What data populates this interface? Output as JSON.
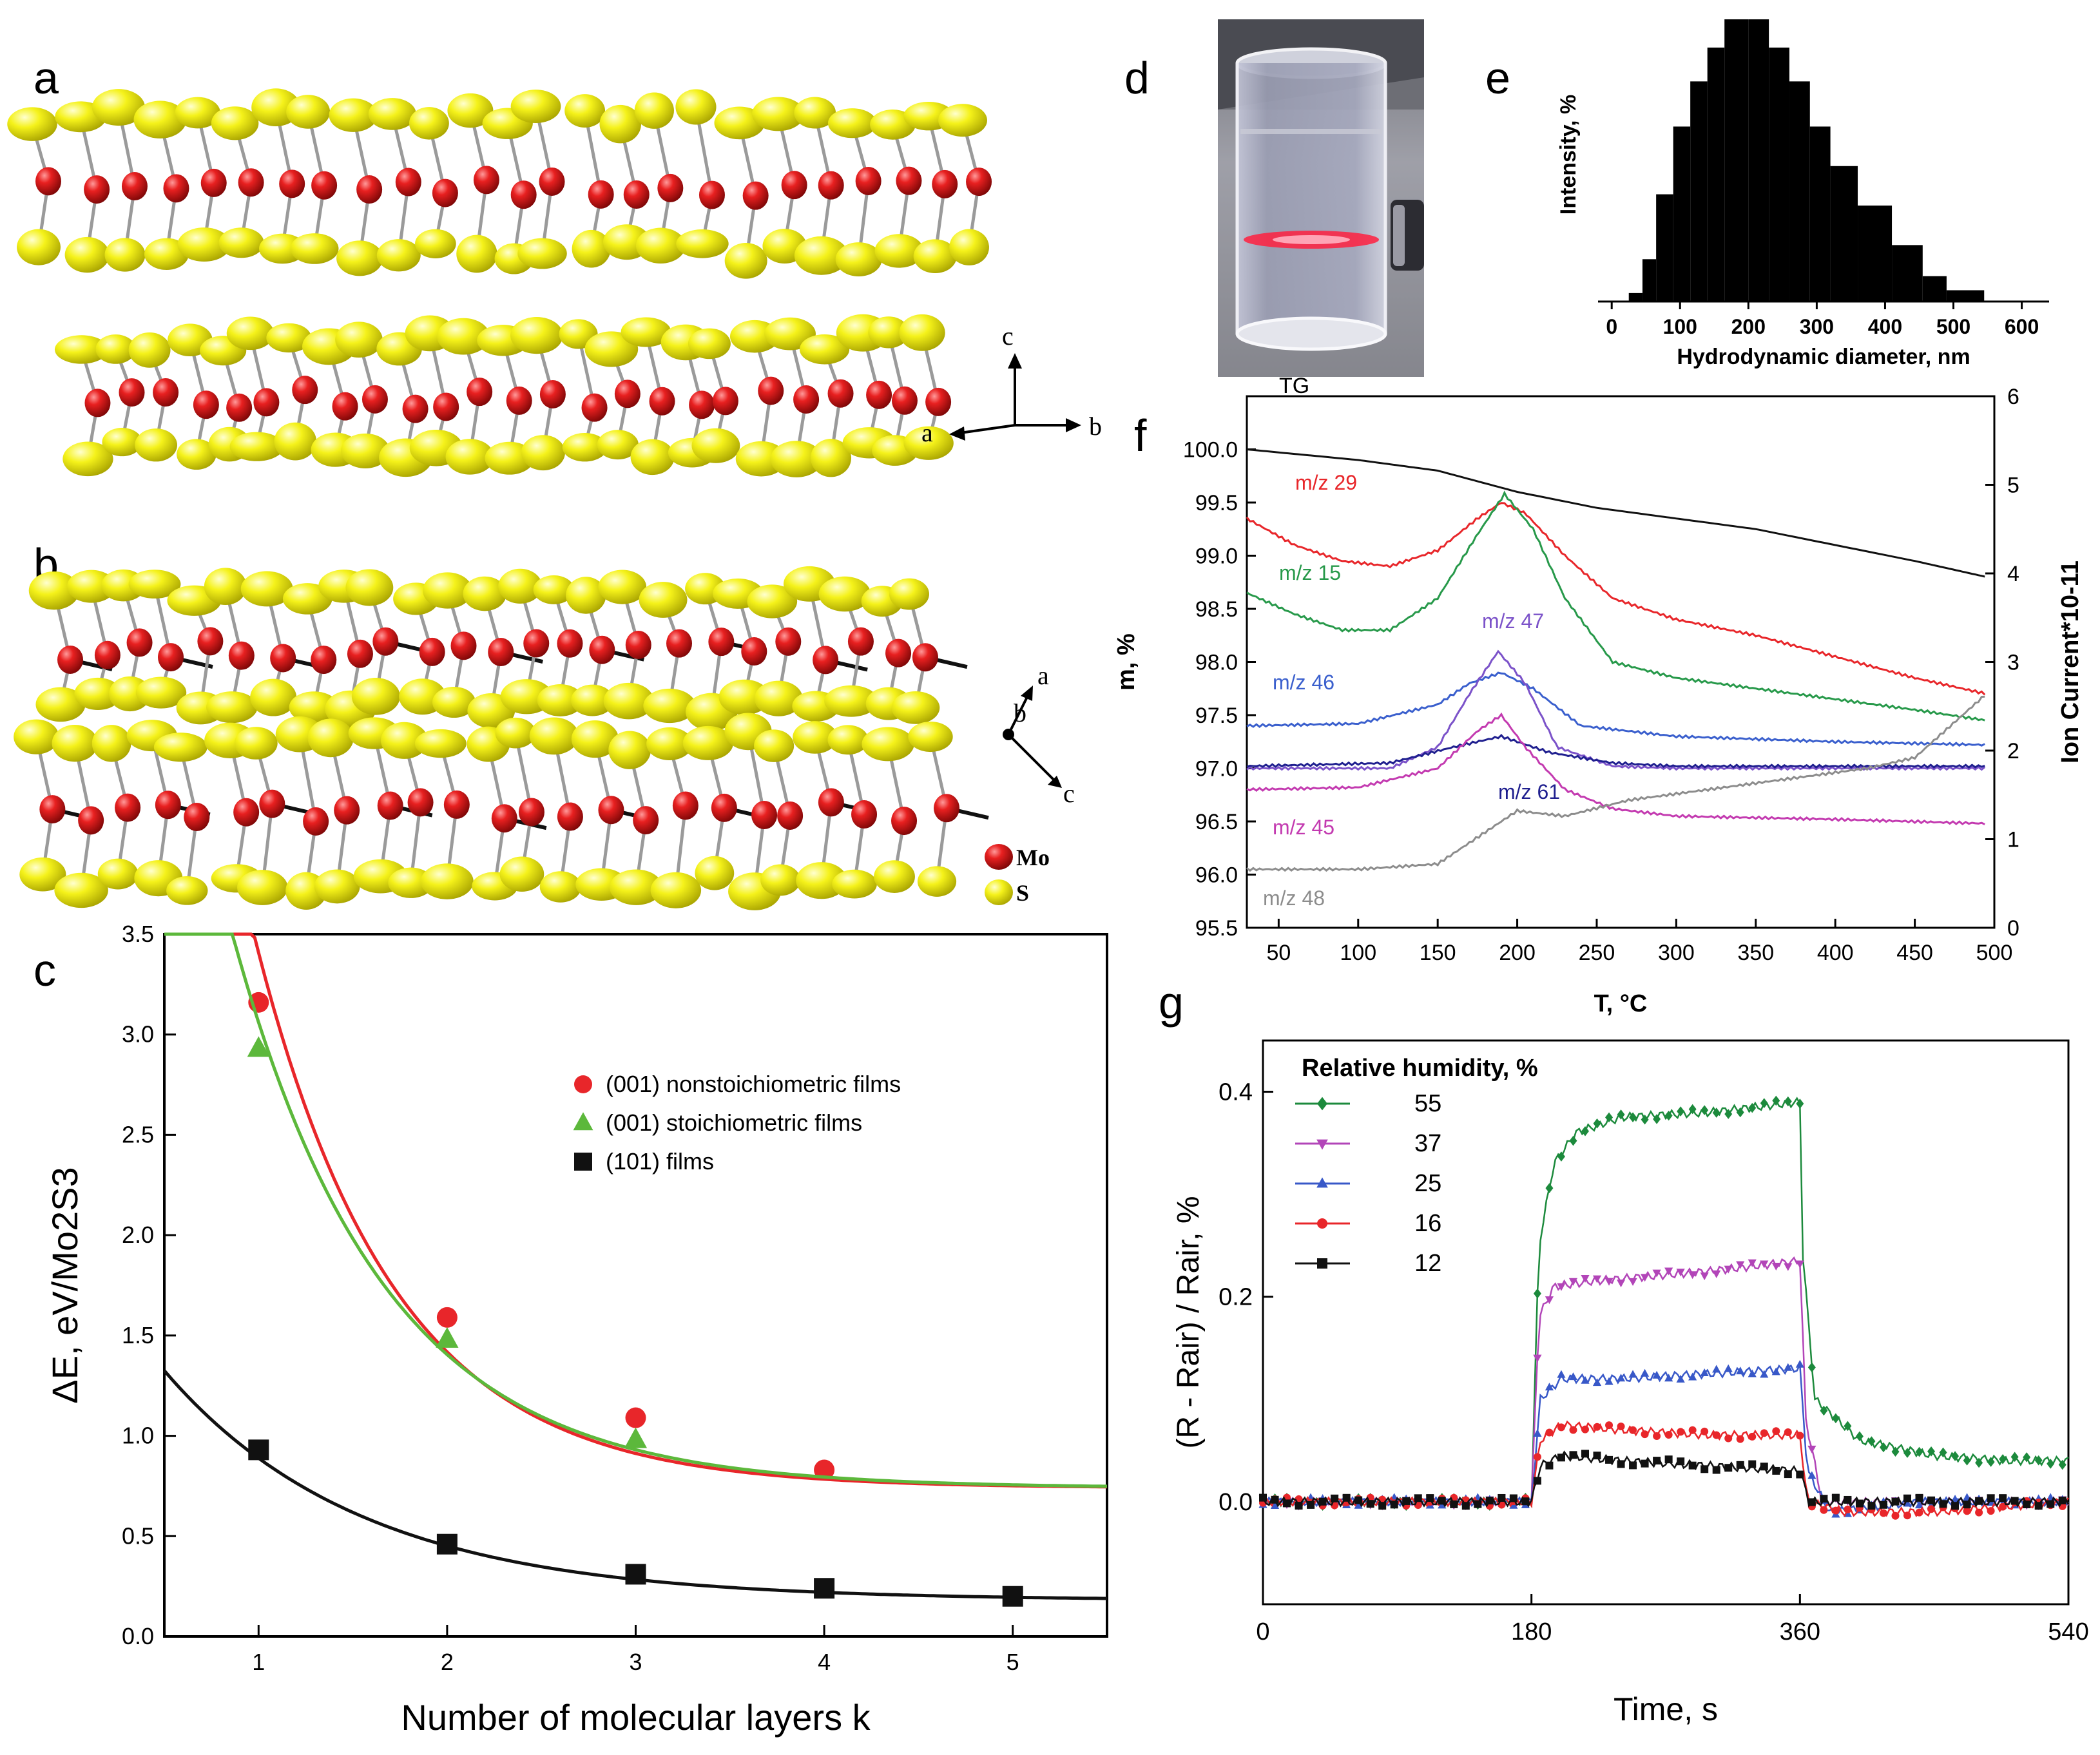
{
  "panel_labels": {
    "a": "a",
    "b": "b",
    "c": "c",
    "d": "d",
    "e": "e",
    "f": "f",
    "g": "g"
  },
  "structure": {
    "axes_a": {
      "c": "c",
      "a": "a",
      "b": "b"
    },
    "axes_b": {
      "a": "a",
      "b": "b",
      "c": "c"
    },
    "legend": {
      "mo": "Mo",
      "s": "S"
    },
    "colors": {
      "mo": "#e01818",
      "s": "#f0ee10",
      "bond": "#9a9a9a",
      "bond_dark": "#111111"
    }
  },
  "photo": {
    "colors": {
      "glass": "#9da0b3",
      "laser": "#ff2040",
      "background": "#6d6d73"
    }
  },
  "chart_data": [
    {
      "id": "c",
      "type": "scatter",
      "xlabel": "Number of molecular layers k",
      "ylabel": "ΔE, eV/Mo2S3",
      "xlim": [
        0.5,
        5.5
      ],
      "ylim": [
        0,
        3.5
      ],
      "xticks": [
        "1",
        "2",
        "3",
        "4",
        "5"
      ],
      "yticks": [
        "0.0",
        "0.5",
        "1.0",
        "1.5",
        "2.0",
        "2.5",
        "3.0",
        "3.5"
      ],
      "series": [
        {
          "name": "(001) nonstoichiometric films",
          "color": "#e8262a",
          "marker": "circle",
          "x": [
            1,
            2,
            3,
            4
          ],
          "y": [
            3.16,
            1.59,
            1.09,
            0.83
          ],
          "fit": {
            "a": 0.74,
            "b": 10.5,
            "c": 1.37
          }
        },
        {
          "name": "(001) stoichiometric films",
          "color": "#5cb83b",
          "marker": "triangle",
          "x": [
            1,
            2,
            3
          ],
          "y": [
            2.93,
            1.48,
            0.98
          ],
          "fit": {
            "a": 0.74,
            "b": 8.1,
            "c": 1.25
          }
        },
        {
          "name": "(101) films",
          "color": "#111111",
          "marker": "square",
          "x": [
            1,
            2,
            3,
            4,
            5
          ],
          "y": [
            0.93,
            0.46,
            0.31,
            0.24,
            0.2
          ],
          "fit": {
            "a": 0.18,
            "b": 1.85,
            "c": 0.96
          }
        }
      ]
    },
    {
      "id": "e",
      "type": "bar",
      "xlabel": "Hydrodynamic diameter, nm",
      "ylabel": "Intensity, %",
      "xlim": [
        -20,
        640
      ],
      "ylim": [
        0,
        1
      ],
      "xticks": [
        "0",
        "100",
        "200",
        "300",
        "400",
        "500",
        "600"
      ],
      "bar_color": "#000000",
      "bins": [
        [
          25,
          45,
          0.03
        ],
        [
          45,
          65,
          0.15
        ],
        [
          65,
          90,
          0.38
        ],
        [
          90,
          115,
          0.62
        ],
        [
          115,
          140,
          0.78
        ],
        [
          140,
          165,
          0.9
        ],
        [
          165,
          200,
          1.0
        ],
        [
          200,
          230,
          1.0
        ],
        [
          230,
          260,
          0.9
        ],
        [
          260,
          290,
          0.78
        ],
        [
          290,
          320,
          0.62
        ],
        [
          320,
          360,
          0.48
        ],
        [
          360,
          410,
          0.34
        ],
        [
          410,
          455,
          0.2
        ],
        [
          455,
          490,
          0.09
        ],
        [
          490,
          545,
          0.04
        ]
      ]
    },
    {
      "id": "f",
      "type": "line",
      "title": "TG",
      "xlabel": "T, °C",
      "ylabel": "m, %",
      "y2label": "Ion Current*10-11",
      "xlim": [
        30,
        500
      ],
      "ylim": [
        95.5,
        100.5
      ],
      "y2lim": [
        0,
        6
      ],
      "xticks": [
        "50",
        "100",
        "150",
        "200",
        "250",
        "300",
        "350",
        "400",
        "450",
        "500"
      ],
      "yticks": [
        "95.5",
        "96.0",
        "96.5",
        "97.0",
        "97.5",
        "98.0",
        "98.5",
        "99.0",
        "99.5",
        "100.0"
      ],
      "y2ticks": [
        "0",
        "1",
        "2",
        "3",
        "4",
        "5",
        "6"
      ],
      "series": [
        {
          "name": "TG",
          "color": "#111111",
          "axis": "left",
          "x": [
            30,
            100,
            150,
            200,
            250,
            300,
            350,
            400,
            450,
            495
          ],
          "y": [
            100.0,
            99.9,
            99.8,
            99.6,
            99.45,
            99.35,
            99.25,
            99.1,
            98.95,
            98.8
          ]
        },
        {
          "name": "m/z 29",
          "color": "#e8262a",
          "axis": "left",
          "x": [
            30,
            60,
            90,
            120,
            150,
            175,
            190,
            205,
            230,
            260,
            300,
            350,
            400,
            450,
            495
          ],
          "y": [
            99.35,
            99.1,
            98.95,
            98.9,
            99.05,
            99.35,
            99.5,
            99.4,
            99.0,
            98.6,
            98.4,
            98.25,
            98.05,
            97.85,
            97.7
          ]
        },
        {
          "name": "m/z 15",
          "color": "#27994a",
          "axis": "left",
          "x": [
            30,
            60,
            90,
            120,
            150,
            175,
            192,
            210,
            230,
            260,
            300,
            350,
            400,
            450,
            495
          ],
          "y": [
            98.65,
            98.45,
            98.3,
            98.3,
            98.6,
            99.2,
            99.58,
            99.25,
            98.6,
            98.0,
            97.85,
            97.75,
            97.65,
            97.55,
            97.45
          ]
        },
        {
          "name": "m/z 46",
          "color": "#3a5fcd",
          "axis": "left",
          "x": [
            30,
            100,
            150,
            170,
            190,
            210,
            240,
            300,
            400,
            495
          ],
          "y": [
            97.4,
            97.42,
            97.6,
            97.8,
            97.9,
            97.75,
            97.4,
            97.3,
            97.25,
            97.22
          ]
        },
        {
          "name": "m/z 47",
          "color": "#7b52c9",
          "axis": "left",
          "x": [
            30,
            120,
            150,
            170,
            188,
            205,
            225,
            260,
            300,
            400,
            495
          ],
          "y": [
            97.0,
            97.0,
            97.2,
            97.7,
            98.1,
            97.8,
            97.2,
            97.02,
            97.0,
            97.0,
            97.0
          ]
        },
        {
          "name": "m/z 61",
          "color": "#1f1f8f",
          "axis": "left",
          "x": [
            30,
            120,
            160,
            190,
            220,
            260,
            300,
            400,
            495
          ],
          "y": [
            97.02,
            97.05,
            97.2,
            97.3,
            97.15,
            97.05,
            97.02,
            97.02,
            97.02
          ]
        },
        {
          "name": "m/z 45",
          "color": "#c33ab0",
          "axis": "left",
          "x": [
            30,
            100,
            150,
            175,
            190,
            205,
            230,
            260,
            300,
            400,
            495
          ],
          "y": [
            96.8,
            96.82,
            97.0,
            97.35,
            97.5,
            97.2,
            96.8,
            96.62,
            96.55,
            96.52,
            96.48
          ]
        },
        {
          "name": "m/z 48",
          "color": "#8c8c8c",
          "axis": "left",
          "x": [
            30,
            100,
            150,
            180,
            200,
            230,
            270,
            320,
            370,
            420,
            450,
            480,
            495
          ],
          "y": [
            96.05,
            96.05,
            96.1,
            96.4,
            96.6,
            96.55,
            96.7,
            96.8,
            96.9,
            97.0,
            97.1,
            97.5,
            97.7
          ]
        }
      ]
    },
    {
      "id": "g",
      "type": "line",
      "xlabel": "Time, s",
      "ylabel": "(R - Rair) / Rair, %",
      "legend_title": "Relative humidity, %",
      "xlim": [
        0,
        540
      ],
      "ylim": [
        -0.1,
        0.45
      ],
      "xticks": [
        "0",
        "180",
        "360",
        "540"
      ],
      "yticks": [
        "0.0",
        "0.2",
        "0.4"
      ],
      "series": [
        {
          "name": "55",
          "color": "#1c8a3c",
          "marker": "diamond",
          "x": [
            0,
            180,
            185,
            195,
            210,
            240,
            300,
            360,
            362,
            370,
            400,
            450,
            500,
            540
          ],
          "y": [
            0.0,
            0.0,
            0.25,
            0.33,
            0.36,
            0.375,
            0.38,
            0.39,
            0.24,
            0.1,
            0.06,
            0.045,
            0.04,
            0.04
          ]
        },
        {
          "name": "37",
          "color": "#b245b8",
          "marker": "triangle-down",
          "x": [
            0,
            180,
            185,
            195,
            220,
            300,
            360,
            364,
            375,
            420,
            480,
            540
          ],
          "y": [
            0.0,
            0.0,
            0.18,
            0.21,
            0.215,
            0.225,
            0.235,
            0.08,
            0.0,
            0.0,
            0.0,
            0.0
          ]
        },
        {
          "name": "25",
          "color": "#3858c8",
          "marker": "triangle-up",
          "x": [
            0,
            180,
            186,
            200,
            240,
            300,
            360,
            365,
            380,
            440,
            540
          ],
          "y": [
            0.0,
            0.0,
            0.1,
            0.12,
            0.12,
            0.125,
            0.13,
            0.03,
            -0.01,
            0.0,
            0.0
          ]
        },
        {
          "name": "16",
          "color": "#e8262a",
          "marker": "circle",
          "x": [
            0,
            180,
            186,
            200,
            240,
            300,
            360,
            365,
            390,
            450,
            540
          ],
          "y": [
            0.0,
            0.0,
            0.06,
            0.075,
            0.07,
            0.065,
            0.065,
            0.0,
            -0.01,
            -0.01,
            0.0
          ]
        },
        {
          "name": "12",
          "color": "#111111",
          "marker": "square",
          "x": [
            0,
            180,
            186,
            200,
            240,
            300,
            360,
            366,
            400,
            460,
            540
          ],
          "y": [
            0.0,
            0.0,
            0.035,
            0.045,
            0.04,
            0.035,
            0.03,
            0.0,
            0.0,
            0.0,
            0.0
          ]
        }
      ]
    }
  ]
}
